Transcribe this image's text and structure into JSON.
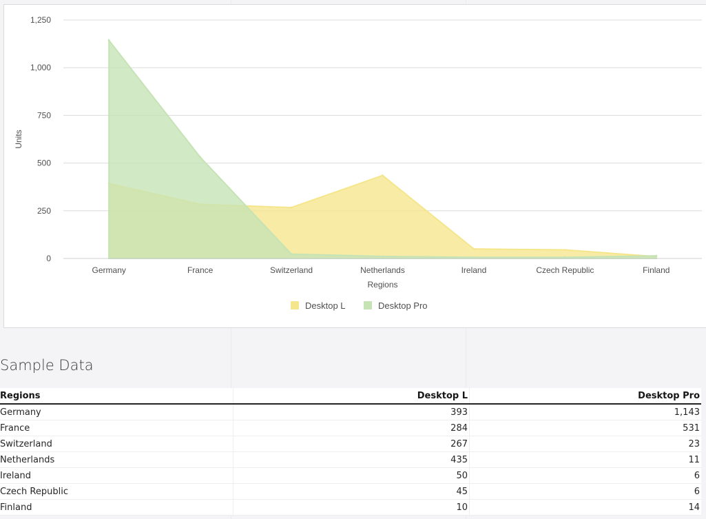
{
  "chart_data": {
    "type": "area",
    "categories": [
      "Germany",
      "France",
      "Switzerland",
      "Netherlands",
      "Ireland",
      "Czech Republic",
      "Finland"
    ],
    "series": [
      {
        "name": "Desktop L",
        "values": [
          393,
          284,
          267,
          435,
          50,
          45,
          10
        ],
        "color": "#f5e68c"
      },
      {
        "name": "Desktop Pro",
        "values": [
          1143,
          531,
          23,
          11,
          6,
          6,
          14
        ],
        "color": "#c5e3b5"
      }
    ],
    "xlabel": "Regions",
    "ylabel": "Units",
    "ylim": [
      0,
      1250
    ],
    "yticks": [
      0,
      250,
      500,
      750,
      1000,
      1250
    ],
    "ytick_labels": [
      "0",
      "250",
      "500",
      "750",
      "1,000",
      "1,250"
    ],
    "grid": true,
    "legend_position": "bottom"
  },
  "sample_title": "Sample Data",
  "table": {
    "headers": [
      "Regions",
      "Desktop L",
      "Desktop Pro"
    ],
    "rows": [
      [
        "Germany",
        "393",
        "1,143"
      ],
      [
        "France",
        "284",
        "531"
      ],
      [
        "Switzerland",
        "267",
        "23"
      ],
      [
        "Netherlands",
        "435",
        "11"
      ],
      [
        "Ireland",
        "50",
        "6"
      ],
      [
        "Czech Republic",
        "45",
        "6"
      ],
      [
        "Finland",
        "10",
        "14"
      ]
    ]
  }
}
